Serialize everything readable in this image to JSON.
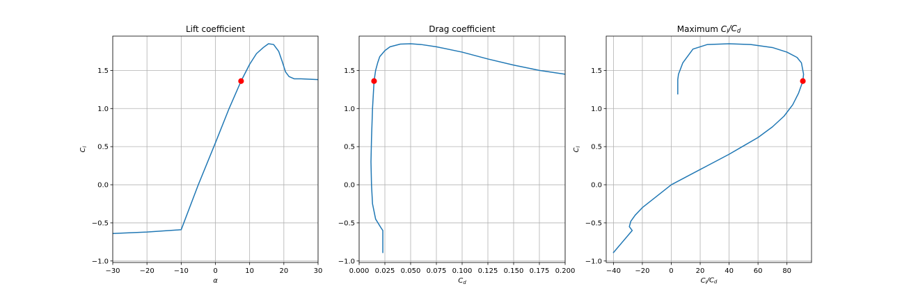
{
  "colors": {
    "series": "#1f77b4",
    "marker": "#ff0000",
    "grid": "#b0b0b0"
  },
  "chart_data": [
    {
      "type": "line",
      "title": "Lift coefficient",
      "xlabel": "α",
      "ylabel": "C_l",
      "xlim": [
        -30,
        30
      ],
      "ylim": [
        -1.02,
        1.95
      ],
      "xticks": [
        -30,
        -20,
        -10,
        0,
        10,
        20,
        30
      ],
      "xtick_labels": [
        "−30",
        "−20",
        "−10",
        "0",
        "10",
        "20",
        "30"
      ],
      "yticks": [
        -1.0,
        -0.5,
        0.0,
        0.5,
        1.0,
        1.5
      ],
      "ytick_labels": [
        "−1.0",
        "−0.5",
        "0.0",
        "0.5",
        "1.0",
        "1.5"
      ],
      "grid": true,
      "series": [
        {
          "x": [
            -30,
            -20,
            -10,
            -5,
            0,
            4,
            7.5,
            10,
            12,
            14,
            15.5,
            17,
            18.5,
            19.5,
            20.5,
            21.5,
            23,
            25,
            30
          ],
          "y": [
            -0.64,
            -0.62,
            -0.59,
            0.0,
            0.55,
            1.0,
            1.36,
            1.58,
            1.72,
            1.8,
            1.85,
            1.84,
            1.75,
            1.62,
            1.48,
            1.42,
            1.39,
            1.39,
            1.38
          ]
        }
      ],
      "marker": {
        "x": 7.5,
        "y": 1.36
      }
    },
    {
      "type": "line",
      "title": "Drag coefficient",
      "xlabel": "C_d",
      "ylabel": "",
      "xlim": [
        0.0,
        0.2
      ],
      "ylim": [
        -1.02,
        1.95
      ],
      "xticks": [
        0.0,
        0.025,
        0.05,
        0.075,
        0.1,
        0.125,
        0.15,
        0.175,
        0.2
      ],
      "xtick_labels": [
        "0.000",
        "0.025",
        "0.050",
        "0.075",
        "0.100",
        "0.125",
        "0.150",
        "0.175",
        "0.200"
      ],
      "yticks": [
        -1.0,
        -0.5,
        0.0,
        0.5,
        1.0,
        1.5
      ],
      "ytick_labels": [
        "−1.0",
        "−0.5",
        "0.0",
        "0.5",
        "1.0",
        "1.5"
      ],
      "grid": true,
      "series": [
        {
          "x": [
            0.023,
            0.023,
            0.021,
            0.016,
            0.013,
            0.012,
            0.0115,
            0.012,
            0.013,
            0.0145,
            0.016,
            0.018,
            0.02,
            0.025,
            0.03,
            0.04,
            0.05,
            0.06,
            0.075,
            0.1,
            0.125,
            0.15,
            0.175,
            0.2
          ],
          "y": [
            -0.89,
            -0.6,
            -0.56,
            -0.45,
            -0.25,
            0.0,
            0.3,
            0.6,
            1.0,
            1.36,
            1.5,
            1.6,
            1.68,
            1.76,
            1.81,
            1.845,
            1.85,
            1.84,
            1.81,
            1.74,
            1.65,
            1.57,
            1.5,
            1.45
          ]
        }
      ],
      "marker": {
        "x": 0.0145,
        "y": 1.36
      }
    },
    {
      "type": "line",
      "title_parts": [
        "Maximum ",
        "C",
        "l",
        "/",
        "C",
        "d"
      ],
      "xlabel_parts": [
        "C",
        "l",
        "/",
        "C",
        "d"
      ],
      "ylabel": "C_l",
      "xlim": [
        -45,
        97
      ],
      "ylim": [
        -1.02,
        1.95
      ],
      "xticks": [
        -40,
        -20,
        0,
        20,
        40,
        60,
        80
      ],
      "xtick_labels": [
        "−40",
        "−20",
        "0",
        "20",
        "40",
        "60",
        "80"
      ],
      "yticks": [
        -1.0,
        -0.5,
        0.0,
        0.5,
        1.0,
        1.5
      ],
      "ytick_labels": [
        "−1.0",
        "−0.5",
        "0.0",
        "0.5",
        "1.0",
        "1.5"
      ],
      "grid": true,
      "series": [
        {
          "x": [
            -40,
            -27,
            -29,
            -28,
            -25,
            -20,
            -12,
            0,
            10,
            20,
            30,
            40,
            50,
            60,
            70,
            78,
            84,
            88,
            91,
            91.5,
            90,
            87,
            80,
            70,
            55,
            40,
            25,
            15,
            8,
            5,
            4.5,
            4.5
          ],
          "y": [
            -0.89,
            -0.6,
            -0.55,
            -0.48,
            -0.4,
            -0.3,
            -0.18,
            0.0,
            0.1,
            0.2,
            0.3,
            0.4,
            0.51,
            0.62,
            0.76,
            0.9,
            1.05,
            1.2,
            1.36,
            1.45,
            1.6,
            1.67,
            1.74,
            1.8,
            1.84,
            1.85,
            1.84,
            1.78,
            1.6,
            1.45,
            1.38,
            1.19
          ]
        }
      ],
      "marker": {
        "x": 91,
        "y": 1.36
      }
    }
  ]
}
